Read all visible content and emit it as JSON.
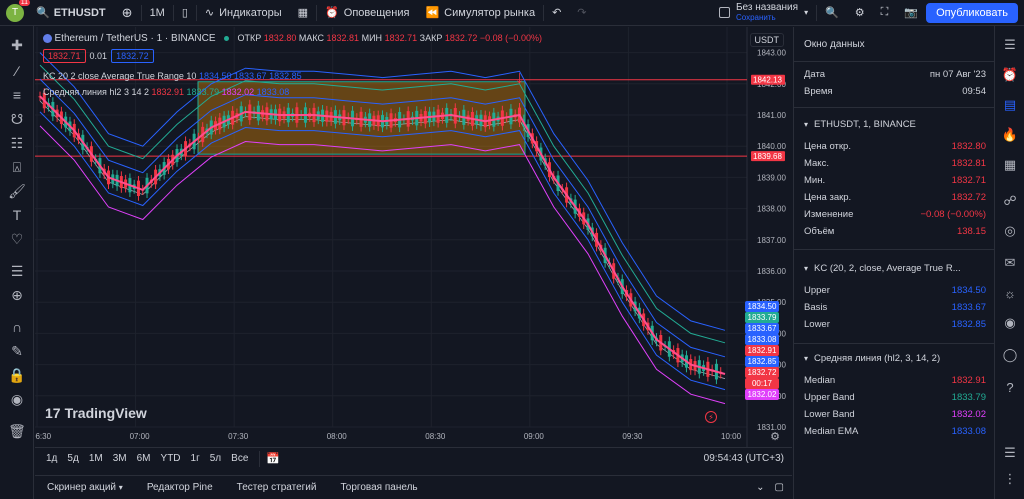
{
  "topbar": {
    "avatar_letter": "T",
    "avatar_badge": "11",
    "symbol": "ETHUSDT",
    "interval": "1M",
    "indicators_label": "Индикаторы",
    "alerts_label": "Оповещения",
    "replay_label": "Симулятор рынка",
    "layout_name": "Без названия",
    "layout_status": "Сохранить",
    "publish_label": "Опубликовать"
  },
  "chart": {
    "title": "Ethereum / TetherUS · 1 · BINANCE",
    "ohlc": {
      "o_label": "ОТКР",
      "o": "1832.80",
      "h_label": "МАКС",
      "h": "1832.81",
      "l_label": "МИН",
      "l": "1832.71",
      "c_label": "ЗАКР",
      "c": "1832.72",
      "change": "−0.08 (−0.00%)"
    },
    "bid": "1832.71",
    "spread": "0.01",
    "ask": "1832.72",
    "kc_legend": {
      "name": "KC 20 2 close Average True Range 10",
      "v1": "1834.50",
      "v2": "1833.67",
      "v3": "1832.85"
    },
    "ml_legend": {
      "name": "Средняя линия hl2 3 14 2",
      "v1": "1832.91",
      "v2": "1833.79",
      "v3": "1832.02",
      "v4": "1833.08"
    },
    "currency": "USDT",
    "watermark": "TradingView",
    "y_ticks": [
      "1843.00",
      "1842.00",
      "1841.00",
      "1840.00",
      "1839.00",
      "1838.00",
      "1837.00",
      "1836.00",
      "1835.00",
      "1834.00",
      "1833.00",
      "1832.00",
      "1831.00"
    ],
    "x_ticks": [
      "06:30",
      "07:00",
      "07:30",
      "08:00",
      "08:30",
      "09:00",
      "09:30",
      "10:00"
    ],
    "hline_upper": "1842.13",
    "hline_lower": "1839.68",
    "price_tags": [
      {
        "value": "1834.50",
        "color": "#2962ff"
      },
      {
        "value": "1833.79",
        "color": "#22ab94"
      },
      {
        "value": "1833.67",
        "color": "#2962ff"
      },
      {
        "value": "1833.08",
        "color": "#2962ff"
      },
      {
        "value": "1832.91",
        "color": "#f23645"
      },
      {
        "value": "1832.85",
        "color": "#2962ff"
      },
      {
        "value": "1832.72",
        "color": "#f23645"
      },
      {
        "value": "00:17",
        "color": "#f23645"
      },
      {
        "value": "1832.02",
        "color": "#e040fb"
      }
    ]
  },
  "chart_data": {
    "type": "candlestick",
    "symbol": "ETHUSDT",
    "x": [
      "06:30",
      "06:40",
      "06:50",
      "07:00",
      "07:10",
      "07:20",
      "07:30",
      "07:40",
      "07:50",
      "08:00",
      "08:10",
      "08:20",
      "08:30",
      "08:40",
      "08:50",
      "09:00",
      "09:10",
      "09:20",
      "09:30",
      "09:40",
      "09:50"
    ],
    "close": [
      1841.6,
      1840.5,
      1839.0,
      1838.6,
      1839.7,
      1840.6,
      1841.1,
      1841.0,
      1841.0,
      1840.9,
      1840.8,
      1840.9,
      1841.0,
      1840.8,
      1841.0,
      1839.0,
      1837.5,
      1835.5,
      1833.8,
      1833.0,
      1832.7
    ],
    "ylim": [
      1831,
      1843.5
    ],
    "hlines": [
      1842.13,
      1839.68
    ]
  },
  "bottombar": {
    "timeframes": [
      "1д",
      "5д",
      "1М",
      "3М",
      "6М",
      "YTD",
      "1г",
      "5л",
      "Все"
    ],
    "clock": "09:54:43 (UTC+3)"
  },
  "footer": {
    "tabs": [
      "Скринер акций",
      "Редактор Pine",
      "Тестер стратегий",
      "Торговая панель"
    ]
  },
  "datawindow": {
    "title": "Окно данных",
    "date_label": "Дата",
    "date_value": "пн 07 Авг '23",
    "time_label": "Время",
    "time_value": "09:54",
    "symbol_section": "ETHUSDT, 1, BINANCE",
    "rows_main": [
      {
        "label": "Цена откр.",
        "value": "1832.80",
        "color": "#f23645"
      },
      {
        "label": "Макс.",
        "value": "1832.81",
        "color": "#f23645"
      },
      {
        "label": "Мин.",
        "value": "1832.71",
        "color": "#f23645"
      },
      {
        "label": "Цена закр.",
        "value": "1832.72",
        "color": "#f23645"
      },
      {
        "label": "Изменение",
        "value": "−0.08 (−0.00%)",
        "color": "#f23645"
      },
      {
        "label": "Объём",
        "value": "138.15",
        "color": "#f23645"
      }
    ],
    "kc_section": "KC (20, 2, close, Average True R...",
    "rows_kc": [
      {
        "label": "Upper",
        "value": "1834.50",
        "color": "#2962ff"
      },
      {
        "label": "Basis",
        "value": "1833.67",
        "color": "#2962ff"
      },
      {
        "label": "Lower",
        "value": "1832.85",
        "color": "#2962ff"
      }
    ],
    "ml_section": "Средняя линия (hl2, 3, 14, 2)",
    "rows_ml": [
      {
        "label": "Median",
        "value": "1832.91",
        "color": "#f23645"
      },
      {
        "label": "Upper Band",
        "value": "1833.79",
        "color": "#22ab94"
      },
      {
        "label": "Lower Band",
        "value": "1832.02",
        "color": "#e040fb"
      },
      {
        "label": "Median EMA",
        "value": "1833.08",
        "color": "#2962ff"
      }
    ]
  }
}
